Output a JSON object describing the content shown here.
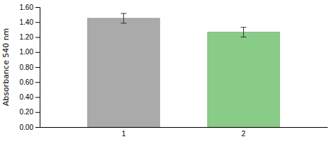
{
  "chart_data": {
    "type": "bar",
    "categories": [
      "1",
      "2"
    ],
    "values": [
      1.45,
      1.265
    ],
    "errors": [
      0.065,
      0.065
    ],
    "colors": [
      "#aaaaaa",
      "#88cc88"
    ],
    "ylabel": "Absorbance 540 nm",
    "ylim": [
      0.0,
      1.6
    ],
    "yticks": [
      {
        "value": 0.0,
        "label": "0.00"
      },
      {
        "value": 0.2,
        "label": "0.20"
      },
      {
        "value": 0.4,
        "label": "0.40"
      },
      {
        "value": 0.6,
        "label": "0.60"
      },
      {
        "value": 0.8,
        "label": "0.80"
      },
      {
        "value": 1.0,
        "label": "1.00"
      },
      {
        "value": 1.2,
        "label": "1.20"
      },
      {
        "value": 1.4,
        "label": "1.40"
      },
      {
        "value": 1.6,
        "label": "1.60"
      }
    ]
  }
}
